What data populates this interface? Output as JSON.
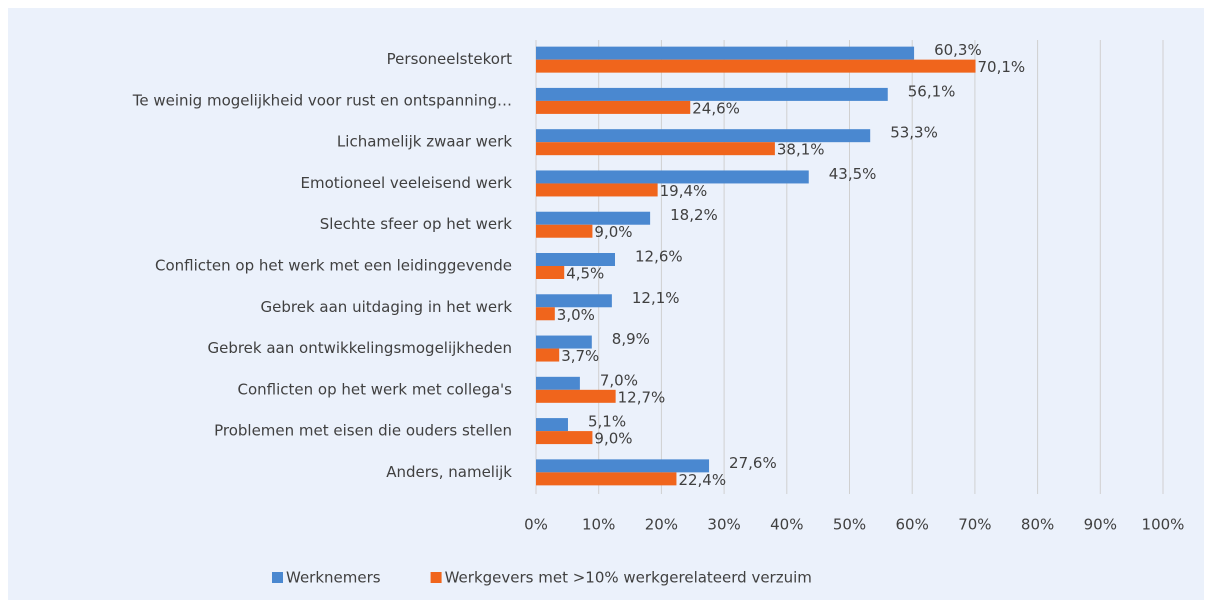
{
  "chart_data": {
    "type": "bar",
    "orientation": "horizontal",
    "categories": [
      "Personeelstekort",
      "Te weinig mogelijkheid voor rust en ontspanning…",
      "Lichamelijk zwaar werk",
      "Emotioneel veeleisend werk",
      "Slechte sfeer op het werk",
      "Conflicten op het werk met een leidinggevende",
      "Gebrek aan uitdaging in het werk",
      "Gebrek aan ontwikkelingsmogelijkheden",
      "Conflicten op het werk met collega's",
      "Problemen met eisen die ouders stellen",
      "Anders, namelijk"
    ],
    "series": [
      {
        "name": "Werknemers",
        "color": "#4a88d0",
        "values": [
          60.3,
          56.1,
          53.3,
          43.5,
          18.2,
          12.6,
          12.1,
          8.9,
          7.0,
          5.1,
          27.6
        ],
        "value_labels": [
          "60,3%",
          "56,1%",
          "53,3%",
          "43,5%",
          "18,2%",
          "12,6%",
          "12,1%",
          "8,9%",
          "7,0%",
          "5,1%",
          "27,6%"
        ]
      },
      {
        "name": "Werkgevers met >10% werkgerelateerd verzuim",
        "color": "#f0651c",
        "values": [
          70.1,
          24.6,
          38.1,
          19.4,
          9.0,
          4.5,
          3.0,
          3.7,
          12.7,
          9.0,
          22.4
        ],
        "value_labels": [
          "70,1%",
          "24,6%",
          "38,1%",
          "19,4%",
          "9,0%",
          "4,5%",
          "3,0%",
          "3,7%",
          "12,7%",
          "9,0%",
          "22,4%"
        ]
      }
    ],
    "xlim": [
      0,
      100
    ],
    "xticks": [
      {
        "value": 0,
        "label": "0%"
      },
      {
        "value": 10,
        "label": "10%"
      },
      {
        "value": 20,
        "label": "20%"
      },
      {
        "value": 30,
        "label": "30%"
      },
      {
        "value": 40,
        "label": "40%"
      },
      {
        "value": 50,
        "label": "50%"
      },
      {
        "value": 60,
        "label": "60%"
      },
      {
        "value": 70,
        "label": "70%"
      },
      {
        "value": 80,
        "label": "80%"
      },
      {
        "value": 90,
        "label": "90%"
      },
      {
        "value": 100,
        "label": "100%"
      }
    ],
    "grid": true,
    "legend": "bottom"
  }
}
